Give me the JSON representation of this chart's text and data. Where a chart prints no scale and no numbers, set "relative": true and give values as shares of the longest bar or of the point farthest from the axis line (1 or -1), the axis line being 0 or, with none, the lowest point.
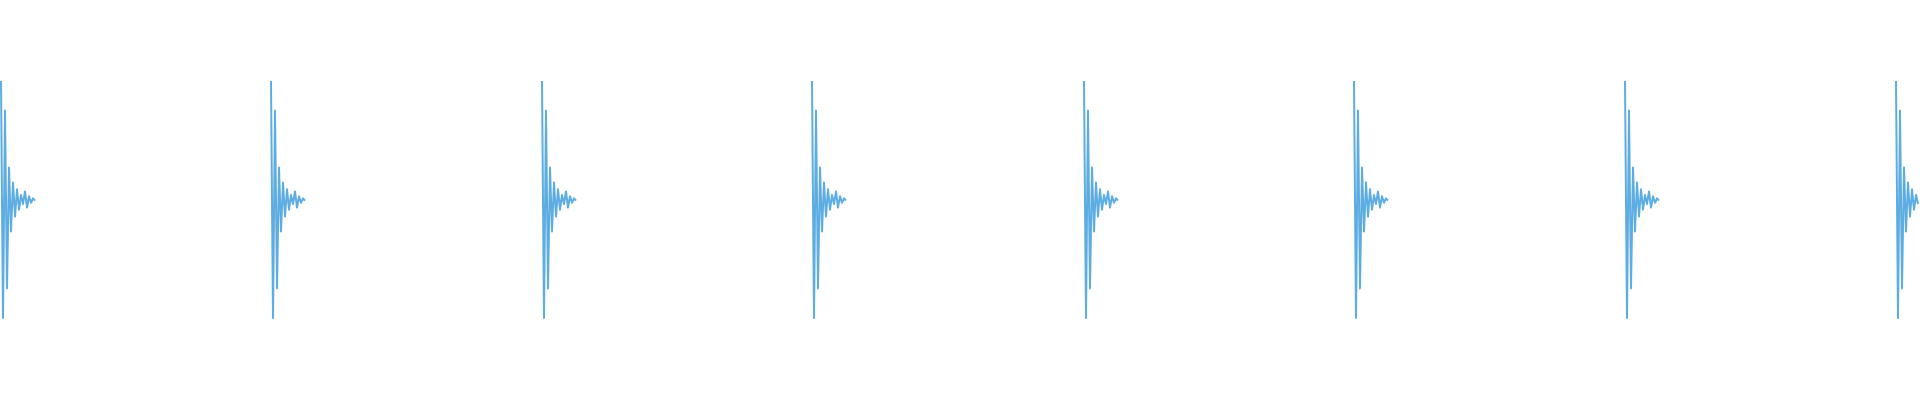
{
  "chart_data": [
    {
      "type": "line",
      "relative": true,
      "categories": [
        null,
        null,
        null,
        null,
        null,
        null,
        null,
        null,
        null,
        null,
        null,
        null,
        null,
        null,
        null,
        null,
        null,
        null
      ],
      "series": [
        {
          "color": "#5dade2",
          "values": [
            1,
            0,
            0.875,
            0.125,
            0.635,
            0.365,
            0.572,
            0.428,
            0.543,
            0.457,
            0.519,
            0.481,
            0.534,
            0.466,
            0.514,
            0.486,
            0.505,
            0.495
          ]
        }
      ]
    },
    {
      "type": "line",
      "relative": true,
      "categories": [
        null,
        null,
        null,
        null,
        null,
        null,
        null,
        null,
        null,
        null,
        null,
        null,
        null,
        null,
        null,
        null,
        null,
        null
      ],
      "series": [
        {
          "color": "#5dade2",
          "values": [
            1,
            0,
            0.875,
            0.125,
            0.635,
            0.365,
            0.572,
            0.428,
            0.543,
            0.457,
            0.519,
            0.481,
            0.534,
            0.466,
            0.514,
            0.486,
            0.505,
            0.495
          ]
        }
      ]
    },
    {
      "type": "line",
      "relative": true,
      "categories": [
        null,
        null,
        null,
        null,
        null,
        null,
        null,
        null,
        null,
        null,
        null,
        null,
        null,
        null,
        null,
        null,
        null,
        null
      ],
      "series": [
        {
          "color": "#5dade2",
          "values": [
            1,
            0,
            0.875,
            0.125,
            0.635,
            0.365,
            0.572,
            0.428,
            0.543,
            0.457,
            0.519,
            0.481,
            0.534,
            0.466,
            0.514,
            0.486,
            0.505,
            0.495
          ]
        }
      ]
    },
    {
      "type": "line",
      "relative": true,
      "categories": [
        null,
        null,
        null,
        null,
        null,
        null,
        null,
        null,
        null,
        null,
        null,
        null,
        null,
        null,
        null,
        null,
        null,
        null
      ],
      "series": [
        {
          "color": "#5dade2",
          "values": [
            1,
            0,
            0.875,
            0.125,
            0.635,
            0.365,
            0.572,
            0.428,
            0.543,
            0.457,
            0.519,
            0.481,
            0.534,
            0.466,
            0.514,
            0.486,
            0.505,
            0.495
          ]
        }
      ]
    },
    {
      "type": "line",
      "relative": true,
      "categories": [
        null,
        null,
        null,
        null,
        null,
        null,
        null,
        null,
        null,
        null,
        null,
        null,
        null,
        null,
        null,
        null,
        null,
        null
      ],
      "series": [
        {
          "color": "#5dade2",
          "values": [
            1,
            0,
            0.875,
            0.125,
            0.635,
            0.365,
            0.572,
            0.428,
            0.543,
            0.457,
            0.519,
            0.481,
            0.534,
            0.466,
            0.514,
            0.486,
            0.505,
            0.495
          ]
        }
      ]
    },
    {
      "type": "line",
      "relative": true,
      "categories": [
        null,
        null,
        null,
        null,
        null,
        null,
        null,
        null,
        null,
        null,
        null,
        null,
        null,
        null,
        null,
        null,
        null,
        null
      ],
      "series": [
        {
          "color": "#5dade2",
          "values": [
            1,
            0,
            0.875,
            0.125,
            0.635,
            0.365,
            0.572,
            0.428,
            0.543,
            0.457,
            0.519,
            0.481,
            0.534,
            0.466,
            0.514,
            0.486,
            0.505,
            0.495
          ]
        }
      ]
    },
    {
      "type": "line",
      "relative": true,
      "categories": [
        null,
        null,
        null,
        null,
        null,
        null,
        null,
        null,
        null,
        null,
        null,
        null,
        null,
        null,
        null,
        null,
        null,
        null
      ],
      "series": [
        {
          "color": "#5dade2",
          "values": [
            1,
            0,
            0.875,
            0.125,
            0.635,
            0.365,
            0.572,
            0.428,
            0.543,
            0.457,
            0.519,
            0.481,
            0.534,
            0.466,
            0.514,
            0.486,
            0.505,
            0.495
          ]
        }
      ]
    },
    {
      "type": "line",
      "relative": true,
      "categories": [
        null,
        null,
        null,
        null,
        null,
        null,
        null,
        null,
        null,
        null,
        null,
        null
      ],
      "series": [
        {
          "color": "#5dade2",
          "values": [
            1,
            0,
            0.875,
            0.125,
            0.635,
            0.365,
            0.572,
            0.428,
            0.543,
            0.457,
            0.519,
            0.481
          ]
        }
      ]
    }
  ]
}
